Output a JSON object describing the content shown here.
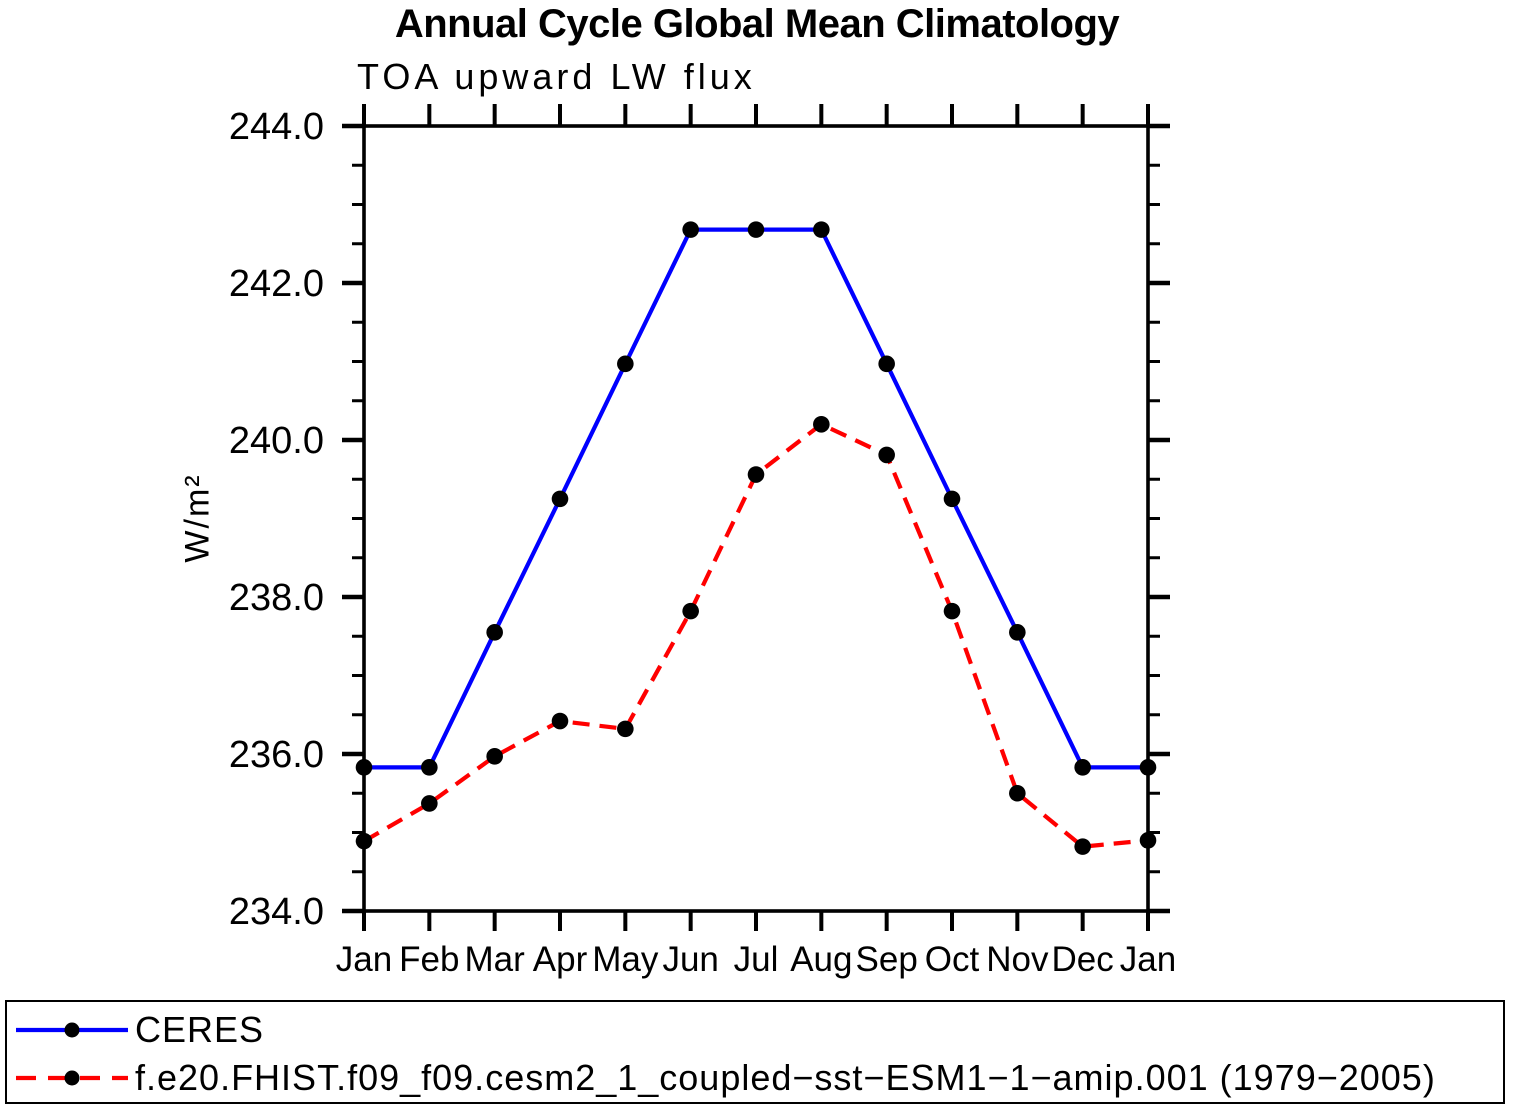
{
  "chart_data": {
    "type": "line",
    "title": "Annual Cycle Global Mean Climatology",
    "subtitle": "TOA upward LW flux",
    "xlabel": "",
    "ylabel": "W/m²",
    "categories": [
      "Jan",
      "Feb",
      "Mar",
      "Apr",
      "May",
      "Jun",
      "Jul",
      "Aug",
      "Sep",
      "Oct",
      "Nov",
      "Dec",
      "Jan"
    ],
    "ylim": [
      234.0,
      244.0
    ],
    "ytick_major_step": 2.0,
    "ytick_minor_step": 0.5,
    "ytick_labels": [
      "234.0",
      "236.0",
      "238.0",
      "240.0",
      "242.0",
      "244.0"
    ],
    "grid": false,
    "legend_position": "bottom-box",
    "axis_color": "#000000",
    "background_color": "#ffffff",
    "series": [
      {
        "name": "CERES",
        "color": "#0000ff",
        "line_style": "solid",
        "marker": "circle",
        "marker_color": "#000000",
        "values": [
          235.83,
          235.83,
          237.55,
          239.25,
          240.97,
          242.68,
          242.68,
          242.68,
          240.97,
          239.25,
          237.55,
          235.83,
          235.83
        ]
      },
      {
        "name": "f.e20.FHIST.f09_f09.cesm2_1_coupled−sst−ESM1−1−amip.001 (1979−2005)",
        "color": "#ff0000",
        "line_style": "dashed",
        "marker": "circle",
        "marker_color": "#000000",
        "values": [
          234.89,
          235.37,
          235.97,
          236.42,
          236.32,
          237.82,
          239.56,
          240.2,
          239.81,
          237.82,
          235.5,
          234.82,
          234.9
        ]
      }
    ]
  }
}
